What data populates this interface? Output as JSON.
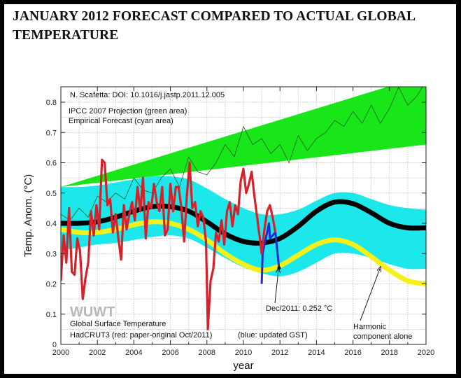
{
  "page": {
    "title": "JANUARY 2012 FORECAST COMPARED TO ACTUAL GLOBAL TEMPERATURE"
  },
  "chart_data": {
    "type": "line",
    "title": "JANUARY 2012 FORECAST COMPARED TO ACTUAL GLOBAL TEMPERATURE",
    "xlabel": "year",
    "ylabel": "Temp. Anom. (°C)",
    "xlim": [
      2000,
      2020
    ],
    "ylim": [
      0,
      0.85
    ],
    "grid": true,
    "x_ticks": [
      "2000",
      "2002",
      "2004",
      "2006",
      "2008",
      "2010",
      "2012",
      "2014",
      "2016",
      "2018",
      "2020"
    ],
    "x_tick_values": [
      2000,
      2002,
      2004,
      2006,
      2008,
      2010,
      2012,
      2014,
      2016,
      2018,
      2020
    ],
    "y_ticks": [
      "0",
      "0.1",
      "0.2",
      "0.3",
      "0.4",
      "0.5",
      "0.6",
      "0.7",
      "0.8"
    ],
    "y_tick_values": [
      0,
      0.1,
      0.2,
      0.3,
      0.4,
      0.5,
      0.6,
      0.7,
      0.8
    ],
    "colors": {
      "ipcc_area": "#19e619",
      "empirical_area": "#1ce8ec",
      "forecast": "#000000",
      "harmonic": "#f4f01a",
      "hadcrut_red": "#d8202a",
      "hadcrut_blue": "#1a2ad8",
      "model_thin": "#1f5a1f"
    },
    "annotations": {
      "doi": "N. Scafetta: DOI: 10.1016/j.jastp.2011.12.005",
      "ipcc": "IPCC 2007 Projection (green area)",
      "empirical": "Empirical Forecast (cyan area)",
      "watermark": "WUWT",
      "gst": "Global Surface Temperature",
      "hadcrut": "HadCRUT3 (red: paper-original Oct/2011)",
      "blue_note": "(blue: updated GST)",
      "dec2011": "Dec/2011: 0.252 °C",
      "harmonic1": "Harmonic",
      "harmonic2": "component alone"
    },
    "series": [
      {
        "name": "IPCC 2007 Projection (green area)",
        "kind": "band",
        "x": [
          2000,
          2020
        ],
        "lower": [
          0.52,
          0.66
        ],
        "upper": [
          0.52,
          0.89
        ]
      },
      {
        "name": "Empirical Forecast (cyan area)",
        "kind": "band",
        "x": [
          2000,
          2001,
          2002,
          2003,
          2004,
          2005,
          2006,
          2007,
          2008,
          2009,
          2010,
          2011,
          2012,
          2013,
          2014,
          2015,
          2016,
          2017,
          2018,
          2019,
          2020
        ],
        "lower": [
          0.31,
          0.32,
          0.33,
          0.335,
          0.345,
          0.355,
          0.36,
          0.35,
          0.32,
          0.285,
          0.255,
          0.235,
          0.225,
          0.24,
          0.27,
          0.3,
          0.3,
          0.285,
          0.265,
          0.25,
          0.25
        ],
        "upper": [
          0.52,
          0.52,
          0.525,
          0.535,
          0.545,
          0.555,
          0.555,
          0.545,
          0.515,
          0.48,
          0.45,
          0.43,
          0.43,
          0.445,
          0.475,
          0.5,
          0.5,
          0.48,
          0.46,
          0.45,
          0.445
        ]
      },
      {
        "name": "Empirical forecast (black)",
        "kind": "line",
        "x": [
          2000,
          2001,
          2002,
          2003,
          2004,
          2005,
          2006,
          2007,
          2008,
          2009,
          2010,
          2011,
          2012,
          2013,
          2014,
          2015,
          2016,
          2017,
          2018,
          2019,
          2020
        ],
        "y": [
          0.4,
          0.4,
          0.405,
          0.42,
          0.44,
          0.455,
          0.455,
          0.44,
          0.405,
          0.365,
          0.34,
          0.335,
          0.35,
          0.39,
          0.44,
          0.47,
          0.465,
          0.435,
          0.4,
          0.385,
          0.385
        ]
      },
      {
        "name": "Harmonic component alone (yellow)",
        "kind": "line",
        "x": [
          2000,
          2001,
          2002,
          2003,
          2004,
          2005,
          2006,
          2007,
          2008,
          2009,
          2010,
          2011,
          2012,
          2013,
          2014,
          2015,
          2016,
          2017,
          2018,
          2019,
          2020
        ],
        "y": [
          0.38,
          0.37,
          0.37,
          0.38,
          0.395,
          0.405,
          0.4,
          0.38,
          0.345,
          0.3,
          0.265,
          0.245,
          0.26,
          0.295,
          0.33,
          0.345,
          0.33,
          0.29,
          0.245,
          0.21,
          0.2
        ]
      },
      {
        "name": "IPCC model mean (thin line)",
        "kind": "line",
        "x": [
          2000,
          2000.5,
          2001,
          2001.5,
          2002,
          2002.5,
          2003,
          2003.5,
          2004,
          2004.5,
          2005,
          2005.5,
          2006,
          2006.5,
          2007,
          2007.5,
          2008,
          2008.5,
          2009,
          2009.5,
          2010,
          2010.5,
          2011,
          2011.5,
          2012,
          2012.5,
          2013,
          2013.5,
          2014,
          2014.5,
          2015,
          2015.5,
          2016,
          2016.5,
          2017,
          2017.5,
          2018,
          2018.5,
          2019,
          2019.5,
          2020
        ],
        "y": [
          0.43,
          0.41,
          0.45,
          0.42,
          0.49,
          0.47,
          0.5,
          0.48,
          0.55,
          0.51,
          0.5,
          0.55,
          0.58,
          0.52,
          0.62,
          0.57,
          0.56,
          0.6,
          0.66,
          0.62,
          0.72,
          0.66,
          0.68,
          0.63,
          0.66,
          0.6,
          0.69,
          0.64,
          0.68,
          0.7,
          0.74,
          0.72,
          0.77,
          0.73,
          0.79,
          0.73,
          0.78,
          0.85,
          0.79,
          0.82,
          0.87
        ]
      },
      {
        "name": "HadCRUT3 (red: paper-original Oct/2011)",
        "kind": "line",
        "x": [
          2000.0,
          2000.15,
          2000.3,
          2000.45,
          2000.6,
          2000.75,
          2000.9,
          2001.05,
          2001.2,
          2001.35,
          2001.5,
          2001.65,
          2001.8,
          2001.95,
          2002.1,
          2002.25,
          2002.4,
          2002.55,
          2002.7,
          2002.85,
          2003.0,
          2003.15,
          2003.3,
          2003.45,
          2003.6,
          2003.75,
          2003.9,
          2004.05,
          2004.2,
          2004.35,
          2004.5,
          2004.65,
          2004.8,
          2004.95,
          2005.1,
          2005.25,
          2005.4,
          2005.55,
          2005.7,
          2005.85,
          2006.0,
          2006.15,
          2006.3,
          2006.45,
          2006.6,
          2006.75,
          2006.9,
          2007.05,
          2007.2,
          2007.35,
          2007.5,
          2007.65,
          2007.8,
          2007.95,
          2008.05,
          2008.2,
          2008.35,
          2008.5,
          2008.65,
          2008.8,
          2008.95,
          2009.1,
          2009.25,
          2009.4,
          2009.55,
          2009.7,
          2009.85,
          2010.0,
          2010.15,
          2010.3,
          2010.45,
          2010.6,
          2010.75,
          2010.9,
          2011.0,
          2011.15,
          2011.3,
          2011.45,
          2011.6,
          2011.75
        ],
        "y": [
          0.21,
          0.36,
          0.27,
          0.45,
          0.24,
          0.23,
          0.35,
          0.31,
          0.15,
          0.22,
          0.27,
          0.44,
          0.36,
          0.46,
          0.38,
          0.61,
          0.6,
          0.46,
          0.48,
          0.37,
          0.43,
          0.35,
          0.28,
          0.46,
          0.38,
          0.43,
          0.47,
          0.41,
          0.52,
          0.44,
          0.55,
          0.35,
          0.47,
          0.45,
          0.53,
          0.47,
          0.44,
          0.52,
          0.36,
          0.38,
          0.53,
          0.44,
          0.52,
          0.52,
          0.45,
          0.34,
          0.49,
          0.6,
          0.45,
          0.47,
          0.39,
          0.44,
          0.42,
          0.34,
          0.05,
          0.21,
          0.25,
          0.37,
          0.34,
          0.41,
          0.33,
          0.44,
          0.47,
          0.39,
          0.46,
          0.43,
          0.54,
          0.58,
          0.5,
          0.53,
          0.57,
          0.49,
          0.42,
          0.35,
          0.3,
          0.38,
          0.44,
          0.46,
          0.42,
          0.37
        ]
      },
      {
        "name": "Updated GST (blue)",
        "kind": "line",
        "x": [
          2011.0,
          2011.05,
          2011.4,
          2011.45,
          2011.75,
          2011.95
        ],
        "y": [
          0.2,
          0.3,
          0.4,
          0.35,
          0.37,
          0.252
        ]
      }
    ]
  }
}
